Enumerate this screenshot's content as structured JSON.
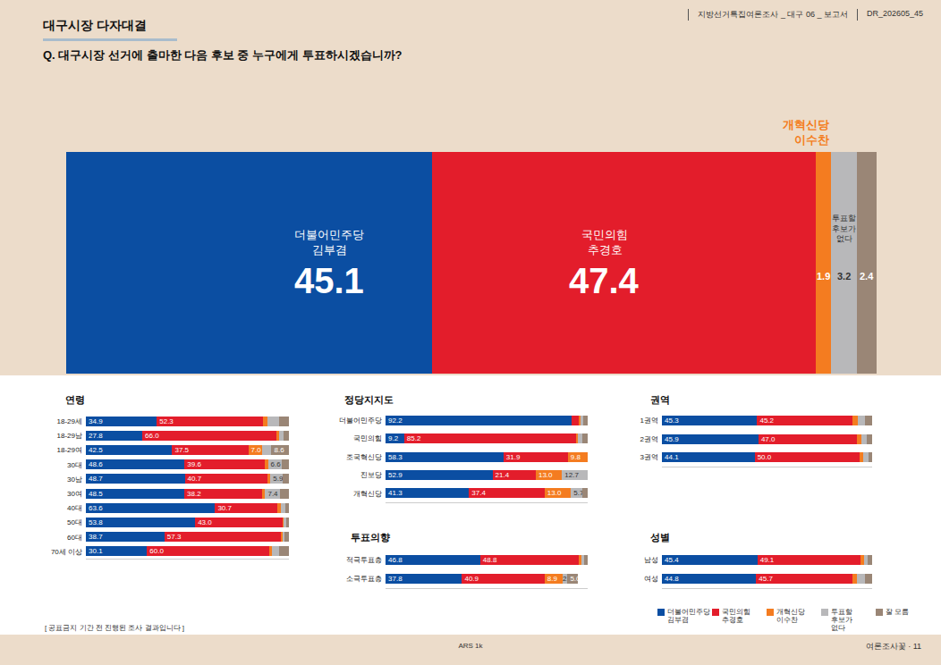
{
  "header": {
    "title": "대구시장 다자대결",
    "question": "Q. 대구시장 선거에 출마한 다음 후보 중 누구에게 투표하시겠습니까?",
    "report": "지방선거특집여론조사 _ 대구 06 _ 보고서",
    "code": "DR_202605_45"
  },
  "footer": {
    "note": "[ 공표금지 기간 전 진행된 조사 결과입니다 ]",
    "method": "ARS 1k",
    "page": "여론조사꽃 · 11"
  },
  "chart_data": [
    {
      "type": "bar",
      "orientation": "horizontal",
      "stacked": true,
      "data_labels": true,
      "tick_labels": false,
      "categories": [
        null
      ],
      "xlim": [
        0,
        100
      ],
      "series": [
        {
          "name": "더불어민주당\n김부겸",
          "color": "#0b4ea2",
          "values": [
            45.1
          ]
        },
        {
          "name": "국민의힘\n추경호",
          "color": "#e31d2b",
          "values": [
            47.4
          ]
        },
        {
          "name": "개혁신당\n이수찬",
          "color": "#f47c20",
          "values": [
            1.9
          ]
        },
        {
          "name": "투표할\n후보가\n없다",
          "color": "#b8b8ba",
          "values": [
            3.2
          ]
        },
        {
          "name": "잘 모름",
          "color": "#9a8676",
          "values": [
            2.4
          ]
        }
      ]
    },
    {
      "type": "bar",
      "title": "연령",
      "orientation": "horizontal",
      "stacked": true,
      "data_labels": true,
      "tick_labels": "y",
      "categories": [
        "18-29세",
        "18-29남",
        "18-29여",
        "30대",
        "30남",
        "30여",
        "40대",
        "50대",
        "60대",
        "70세 이상"
      ],
      "xlim": [
        0,
        100
      ],
      "series": [
        {
          "name": "더불어민주당\n김부겸",
          "color": "#0b4ea2",
          "values": [
            34.9,
            27.8,
            42.5,
            48.6,
            48.7,
            48.5,
            63.6,
            53.8,
            38.7,
            30.1
          ],
          "value_labels": [
            "34.9",
            "27.8",
            "42.5",
            "48.6",
            "48.7",
            "48.5",
            "63.6",
            "53.8",
            "38.7",
            "30.1"
          ]
        },
        {
          "name": "국민의힘\n추경호",
          "color": "#e31d2b",
          "values": [
            52.3,
            66.0,
            37.5,
            39.6,
            40.7,
            38.2,
            30.7,
            43.0,
            57.3,
            60.0
          ],
          "value_labels": [
            "52.3",
            "66.0",
            "37.5",
            "39.6",
            "40.7",
            "38.2",
            "30.7",
            "43.0",
            "57.3",
            "60.0"
          ]
        },
        {
          "name": "개혁신당\n이수찬",
          "color": "#f47c20",
          "values": [
            2.4,
            1.5,
            7.0,
            1.5,
            1.5,
            1.6,
            1.6,
            0.6,
            1.0,
            1.6
          ],
          "value_labels": [
            null,
            null,
            "7.0",
            null,
            null,
            null,
            null,
            null,
            null,
            null
          ]
        },
        {
          "name": "투표할\n후보가\n없다",
          "color": "#b8b8ba",
          "values": [
            5.5,
            2.2,
            4.4,
            6.6,
            5.9,
            7.4,
            2.3,
            1.3,
            1.0,
            3.3
          ],
          "value_labels": [
            null,
            null,
            null,
            "6.6",
            "5.9",
            "7.4",
            null,
            null,
            null,
            null
          ]
        },
        {
          "name": "잘 모름",
          "color": "#9a8676",
          "values": [
            4.9,
            2.5,
            8.6,
            3.7,
            3.2,
            4.3,
            1.8,
            1.3,
            2.0,
            5.0
          ],
          "value_labels": [
            null,
            null,
            "8.6",
            null,
            null,
            null,
            null,
            null,
            null,
            null
          ]
        }
      ]
    },
    {
      "type": "bar",
      "title": "정당지지도",
      "orientation": "horizontal",
      "stacked": true,
      "data_labels": true,
      "tick_labels": "y",
      "categories": [
        "더불어민주당",
        "국민의힘",
        "조국혁신당",
        "진보당",
        "개혁신당"
      ],
      "xlim": [
        0,
        100
      ],
      "series": [
        {
          "name": "더불어민주당\n김부겸",
          "color": "#0b4ea2",
          "values": [
            92.2,
            9.2,
            58.3,
            52.9,
            41.3
          ],
          "value_labels": [
            "92.2",
            "9.2",
            "58.3",
            "52.9",
            "41.3"
          ]
        },
        {
          "name": "국민의힘\n추경호",
          "color": "#e31d2b",
          "values": [
            3.5,
            85.2,
            31.9,
            21.4,
            37.4
          ],
          "value_labels": [
            null,
            "85.2",
            "31.9",
            "21.4",
            "37.4"
          ]
        },
        {
          "name": "개혁신당\n이수찬",
          "color": "#f47c20",
          "values": [
            0.8,
            0.6,
            9.8,
            13.0,
            13.0
          ],
          "value_labels": [
            null,
            null,
            "9.8",
            "13.0",
            "13.0"
          ]
        },
        {
          "name": "투표할\n후보가\n없다",
          "color": "#b8b8ba",
          "values": [
            1.5,
            2.5,
            0,
            12.7,
            5.7
          ],
          "value_labels": [
            null,
            null,
            null,
            "12.7",
            "5.7"
          ]
        },
        {
          "name": "잘 모름",
          "color": "#9a8676",
          "values": [
            2.0,
            2.5,
            0,
            0,
            2.6
          ],
          "value_labels": [
            null,
            null,
            null,
            null,
            null
          ]
        }
      ]
    },
    {
      "type": "bar",
      "title": "권역",
      "orientation": "horizontal",
      "stacked": true,
      "data_labels": true,
      "tick_labels": "y",
      "categories": [
        "1권역",
        "2권역",
        "3권역"
      ],
      "xlim": [
        0,
        100
      ],
      "series": [
        {
          "name": "더불어민주당\n김부겸",
          "color": "#0b4ea2",
          "values": [
            45.3,
            45.9,
            44.1
          ],
          "value_labels": [
            "45.3",
            "45.9",
            "44.1"
          ]
        },
        {
          "name": "국민의힘\n추경호",
          "color": "#e31d2b",
          "values": [
            45.2,
            47.0,
            50.0
          ],
          "value_labels": [
            "45.2",
            "47.0",
            "50.0"
          ]
        },
        {
          "name": "개혁신당\n이수찬",
          "color": "#f47c20",
          "values": [
            2.5,
            1.8,
            1.5
          ],
          "value_labels": [
            null,
            null,
            null
          ]
        },
        {
          "name": "투표할\n후보가\n없다",
          "color": "#b8b8ba",
          "values": [
            3.5,
            2.8,
            2.6
          ],
          "value_labels": [
            null,
            null,
            null
          ]
        },
        {
          "name": "잘 모름",
          "color": "#9a8676",
          "values": [
            3.5,
            2.5,
            1.8
          ],
          "value_labels": [
            null,
            null,
            null
          ]
        }
      ]
    },
    {
      "type": "bar",
      "title": "투표의향",
      "orientation": "horizontal",
      "stacked": true,
      "data_labels": true,
      "tick_labels": "y",
      "categories": [
        "적극투표층",
        "소극투표층"
      ],
      "xlim": [
        0,
        100
      ],
      "series": [
        {
          "name": "더불어민주당\n김부겸",
          "color": "#0b4ea2",
          "values": [
            46.8,
            37.8
          ],
          "value_labels": [
            "46.8",
            "37.8"
          ]
        },
        {
          "name": "국민의힘\n추경호",
          "color": "#e31d2b",
          "values": [
            48.8,
            40.9
          ],
          "value_labels": [
            "48.8",
            "40.9"
          ]
        },
        {
          "name": "개혁신당\n이수찬",
          "color": "#f47c20",
          "values": [
            1.2,
            8.9
          ],
          "value_labels": [
            null,
            "8.9"
          ]
        },
        {
          "name": "투표할\n후보가\n없다",
          "color": "#b8b8ba",
          "values": [
            1.6,
            2.4
          ],
          "value_labels": [
            null,
            "2.4"
          ]
        },
        {
          "name": "잘 모름",
          "color": "#9a8676",
          "values": [
            1.6,
            5.0
          ],
          "value_labels": [
            null,
            "5.0"
          ]
        }
      ]
    },
    {
      "type": "bar",
      "title": "성별",
      "orientation": "horizontal",
      "stacked": true,
      "data_labels": true,
      "tick_labels": "y",
      "legend": "bottom right",
      "categories": [
        "남성",
        "여성"
      ],
      "xlim": [
        0,
        100
      ],
      "series": [
        {
          "name": "더불어민주당\n김부겸",
          "color": "#0b4ea2",
          "values": [
            45.4,
            44.8
          ],
          "value_labels": [
            "45.4",
            "44.8"
          ]
        },
        {
          "name": "국민의힘\n추경호",
          "color": "#e31d2b",
          "values": [
            49.1,
            45.7
          ],
          "value_labels": [
            "49.1",
            "45.7"
          ]
        },
        {
          "name": "개혁신당\n이수찬",
          "color": "#f47c20",
          "values": [
            1.5,
            2.2
          ],
          "value_labels": [
            null,
            null
          ]
        },
        {
          "name": "투표할\n후보가\n없다",
          "color": "#b8b8ba",
          "values": [
            2.0,
            4.0
          ],
          "value_labels": [
            null,
            null
          ]
        },
        {
          "name": "잘 모름",
          "color": "#9a8676",
          "values": [
            2.0,
            3.3
          ],
          "value_labels": [
            null,
            null
          ]
        }
      ]
    }
  ]
}
